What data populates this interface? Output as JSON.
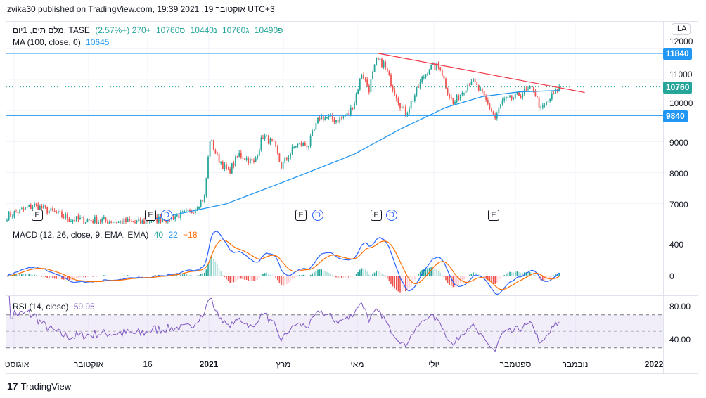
{
  "title": "zvika30 published on TradingView.com, 19:39 2021 ,19 אוקטובר UTC+3",
  "legend": {
    "symbol": "מלם תים, 1יום, TASE",
    "open": "פ10490",
    "high": "ג10760",
    "low": "נ10440",
    "close": "ס10760",
    "change": "+270 (+2.57%)",
    "ma_label": "MA (100, close, 0)",
    "ma_value": "10645",
    "macd_label": "MACD (12, 26, close, 9, EMA, EMA)",
    "macd_v1": "40",
    "macd_v2": "22",
    "macd_v3": "−18",
    "rsi_label": "RSI (14, close)",
    "rsi_value": "59.95"
  },
  "currency": "ILA",
  "price_axis": [
    "12000",
    "11000",
    "10000",
    "9000",
    "8000",
    "7000"
  ],
  "macd_axis": [
    "400",
    "0"
  ],
  "rsi_axis": [
    "80.00",
    "40.00"
  ],
  "badges": {
    "resistance": "11840",
    "last": "10760",
    "support": "9840"
  },
  "time_axis": [
    "אוגוסט",
    "אוקטובר",
    "16",
    "2021",
    "מרץ",
    "מאי",
    "יולי",
    "ספטמבר",
    "נובמבר",
    "2022"
  ],
  "markers": [
    "E",
    "E",
    "D",
    "E",
    "D",
    "E",
    "D",
    "E"
  ],
  "logo": "TradingView",
  "colors": {
    "up": "#26a69a",
    "down": "#ef5350",
    "ma": "#2196f3",
    "macd": "#2962ff",
    "signal": "#ff6d00",
    "rsi": "#7e57c2",
    "trend": "#f23645"
  },
  "chart_data": {
    "type": "candlestick",
    "bars": 303,
    "close_keypoints": [
      [
        0,
        6600
      ],
      [
        15,
        6950
      ],
      [
        35,
        6500
      ],
      [
        73,
        6400
      ],
      [
        100,
        6700
      ],
      [
        108,
        7200
      ],
      [
        111,
        9100
      ],
      [
        115,
        8500
      ],
      [
        121,
        8000
      ],
      [
        127,
        8600
      ],
      [
        135,
        8300
      ],
      [
        140,
        9200
      ],
      [
        146,
        8900
      ],
      [
        150,
        8200
      ],
      [
        158,
        8900
      ],
      [
        165,
        8900
      ],
      [
        171,
        9800
      ],
      [
        181,
        9700
      ],
      [
        187,
        9900
      ],
      [
        190,
        10300
      ],
      [
        194,
        11200
      ],
      [
        198,
        10700
      ],
      [
        202,
        11600
      ],
      [
        206,
        11500
      ],
      [
        210,
        10900
      ],
      [
        215,
        10200
      ],
      [
        218,
        9900
      ],
      [
        223,
        10500
      ],
      [
        227,
        11000
      ],
      [
        231,
        11400
      ],
      [
        237,
        11400
      ],
      [
        240,
        10800
      ],
      [
        244,
        10200
      ],
      [
        250,
        10700
      ],
      [
        254,
        11000
      ],
      [
        260,
        10500
      ],
      [
        265,
        10000
      ],
      [
        267,
        9750
      ],
      [
        271,
        10300
      ],
      [
        277,
        10400
      ],
      [
        283,
        10600
      ],
      [
        288,
        10700
      ],
      [
        292,
        10000
      ],
      [
        296,
        10300
      ],
      [
        302,
        10760
      ]
    ],
    "ma_keypoints": [
      [
        80,
        6500
      ],
      [
        120,
        7000
      ],
      [
        160,
        7900
      ],
      [
        190,
        8600
      ],
      [
        215,
        9400
      ],
      [
        240,
        10100
      ],
      [
        260,
        10450
      ],
      [
        280,
        10600
      ],
      [
        302,
        10645
      ]
    ],
    "hlines": [
      11840,
      9840
    ],
    "last_price": 10760,
    "trendline": [
      [
        203,
        11840
      ],
      [
        316,
        10580
      ]
    ],
    "price_range": [
      6400,
      12800
    ],
    "macd_range": [
      -150,
      560
    ],
    "rsi_range": [
      25,
      95
    ],
    "rsi_bands": [
      70,
      50,
      30
    ]
  }
}
